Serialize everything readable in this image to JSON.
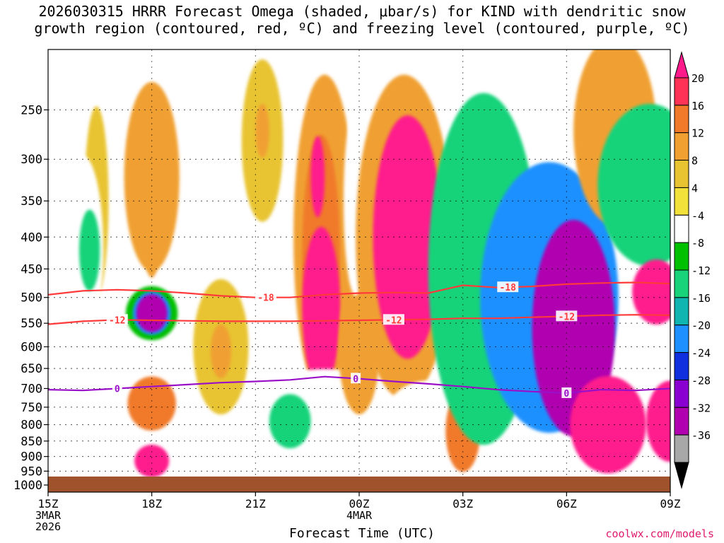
{
  "chart_data": {
    "type": "heatmap",
    "title": "2026030315 HRRR Forecast Omega (shaded, μbar/s) for KIND with dendritic snow\ngrowth region (contoured, red, ºC) and freezing level (contoured, purple, ºC)",
    "xlabel": "Forecast Time (UTC)",
    "ylabel": "",
    "y_scale": "log",
    "y_reversed": true,
    "ylim": [
      1000,
      200
    ],
    "y_ticks": [
      250,
      300,
      350,
      400,
      450,
      500,
      550,
      600,
      650,
      700,
      750,
      800,
      850,
      900,
      950,
      1000
    ],
    "x_ticks": [
      {
        "hour": 0,
        "label": "15Z",
        "sub": [
          "3MAR",
          "2026"
        ]
      },
      {
        "hour": 3,
        "label": "18Z",
        "sub": []
      },
      {
        "hour": 6,
        "label": "21Z",
        "sub": []
      },
      {
        "hour": 9,
        "label": "00Z",
        "sub": [
          "4MAR"
        ]
      },
      {
        "hour": 12,
        "label": "03Z",
        "sub": []
      },
      {
        "hour": 15,
        "label": "06Z",
        "sub": []
      },
      {
        "hour": 18,
        "label": "09Z",
        "sub": []
      }
    ],
    "xlim": [
      0,
      18
    ],
    "ground_color": "#a0522d",
    "colorbar": {
      "labels": [
        "20",
        "16",
        "12",
        "8",
        "4",
        "-4",
        "-8",
        "-12",
        "-16",
        "-20",
        "-24",
        "-28",
        "-32",
        "-36"
      ],
      "colors": [
        "#ff1a8c",
        "#ff3355",
        "#f07a2a",
        "#f0a030",
        "#e8c432",
        "#f2e13a",
        "#ffffff",
        "#00c000",
        "#18d37a",
        "#10b4b0",
        "#1e90ff",
        "#1030e0",
        "#8a00d0",
        "#b000b0",
        "#a8a8a8",
        "#000000"
      ]
    },
    "shaded_regions": [
      {
        "omega": 6,
        "hour": 1.4,
        "p": 350,
        "dh": 0.35,
        "dp": 0.35
      },
      {
        "omega": -8,
        "hour": 1.0,
        "p": 420,
        "dh": 0.6,
        "dp": 0.35
      },
      {
        "omega": -14,
        "hour": 1.2,
        "p": 420,
        "dh": 0.3,
        "dp": 0.15
      },
      {
        "omega": 8,
        "hour": 3.0,
        "p": 320,
        "dh": 0.8,
        "dp": 0.35
      },
      {
        "omega": 10,
        "hour": 3.0,
        "p": 400,
        "dh": 0.25,
        "dp": 0.15
      },
      {
        "omega": -12,
        "hour": 3.0,
        "p": 530,
        "dh": 0.75,
        "dp": 0.1
      },
      {
        "omega": -24,
        "hour": 3.0,
        "p": 530,
        "dh": 0.55,
        "dp": 0.08
      },
      {
        "omega": -36,
        "hour": 3.0,
        "p": 530,
        "dh": 0.45,
        "dp": 0.07
      },
      {
        "omega": 6,
        "hour": 6.2,
        "p": 280,
        "dh": 0.6,
        "dp": 0.3
      },
      {
        "omega": 10,
        "hour": 6.2,
        "p": 270,
        "dh": 0.2,
        "dp": 0.1
      },
      {
        "omega": -8,
        "hour": 4.9,
        "p": 270,
        "dh": 0.25,
        "dp": 0.25
      },
      {
        "omega": 6,
        "hour": 5.0,
        "p": 600,
        "dh": 0.8,
        "dp": 0.25
      },
      {
        "omega": 10,
        "hour": 5.0,
        "p": 610,
        "dh": 0.3,
        "dp": 0.1
      },
      {
        "omega": 8,
        "hour": 8.0,
        "p": 400,
        "dh": 0.9,
        "dp": 0.6
      },
      {
        "omega": 14,
        "hour": 7.9,
        "p": 430,
        "dh": 0.55,
        "dp": 0.45
      },
      {
        "omega": 20,
        "hour": 7.9,
        "p": 520,
        "dh": 0.55,
        "dp": 0.3
      },
      {
        "omega": 20,
        "hour": 7.8,
        "p": 320,
        "dh": 0.2,
        "dp": 0.15
      },
      {
        "omega": -8,
        "hour": 8.0,
        "p": 780,
        "dh": 2.5,
        "dp": 0.18
      },
      {
        "omega": -14,
        "hour": 7.0,
        "p": 790,
        "dh": 0.6,
        "dp": 0.1
      },
      {
        "omega": 8,
        "hour": 9.0,
        "p": 600,
        "dh": 0.6,
        "dp": 0.25
      },
      {
        "omega": -8,
        "hour": 8.9,
        "p": 350,
        "dh": 0.35,
        "dp": 0.35
      },
      {
        "omega": 10,
        "hour": 10.3,
        "p": 400,
        "dh": 1.4,
        "dp": 0.6
      },
      {
        "omega": 20,
        "hour": 10.4,
        "p": 400,
        "dh": 1.0,
        "dp": 0.45
      },
      {
        "omega": -8,
        "hour": 11.0,
        "p": 790,
        "dh": 1.3,
        "dp": 0.15
      },
      {
        "omega": 14,
        "hour": 12.0,
        "p": 820,
        "dh": 0.5,
        "dp": 0.15
      },
      {
        "omega": -14,
        "hour": 12.6,
        "p": 450,
        "dh": 1.6,
        "dp": 0.65
      },
      {
        "omega": -24,
        "hour": 14.5,
        "p": 500,
        "dh": 2.0,
        "dp": 0.5
      },
      {
        "omega": -36,
        "hour": 15.2,
        "p": 560,
        "dh": 1.2,
        "dp": 0.4
      },
      {
        "omega": 8,
        "hour": 16.4,
        "p": 270,
        "dh": 1.2,
        "dp": 0.35
      },
      {
        "omega": -14,
        "hour": 17.4,
        "p": 330,
        "dh": 1.5,
        "dp": 0.3
      },
      {
        "omega": 20,
        "hour": 17.6,
        "p": 490,
        "dh": 0.7,
        "dp": 0.12
      },
      {
        "omega": 20,
        "hour": 16.2,
        "p": 800,
        "dh": 1.1,
        "dp": 0.18
      },
      {
        "omega": 20,
        "hour": 18.0,
        "p": 790,
        "dh": 0.7,
        "dp": 0.15
      },
      {
        "omega": 14,
        "hour": 3.0,
        "p": 740,
        "dh": 0.7,
        "dp": 0.1
      },
      {
        "omega": 20,
        "hour": 3.0,
        "p": 915,
        "dh": 0.5,
        "dp": 0.06
      }
    ],
    "contours": [
      {
        "label": "-18",
        "color": "#ff3a3a",
        "kind": "dendritic",
        "points": [
          [
            0,
            495
          ],
          [
            1,
            488
          ],
          [
            2,
            486
          ],
          [
            3,
            488
          ],
          [
            4,
            492
          ],
          [
            5,
            497
          ],
          [
            6,
            500
          ],
          [
            7,
            500
          ],
          [
            8,
            495
          ],
          [
            9,
            492
          ],
          [
            10,
            491
          ],
          [
            11,
            492
          ],
          [
            12,
            478
          ],
          [
            13,
            482
          ],
          [
            14,
            480
          ],
          [
            15,
            476
          ],
          [
            16,
            474
          ],
          [
            17,
            473
          ],
          [
            18,
            475
          ]
        ],
        "labels_at": [
          6.3,
          13.3
        ]
      },
      {
        "label": "-12",
        "color": "#ff3a3a",
        "kind": "dendritic",
        "points": [
          [
            0,
            552
          ],
          [
            1,
            546
          ],
          [
            2,
            543
          ],
          [
            3,
            544
          ],
          [
            4,
            545
          ],
          [
            5,
            546
          ],
          [
            6,
            546
          ],
          [
            7,
            546
          ],
          [
            8,
            545
          ],
          [
            9,
            544
          ],
          [
            10,
            543
          ],
          [
            11,
            542
          ],
          [
            12,
            540
          ],
          [
            13,
            540
          ],
          [
            14,
            538
          ],
          [
            15,
            536
          ],
          [
            16,
            534
          ],
          [
            17,
            533
          ],
          [
            18,
            534
          ]
        ],
        "labels_at": [
          2.0,
          10.0,
          15.0
        ]
      },
      {
        "label": "0",
        "color": "#9a10c8",
        "kind": "freezing",
        "points": [
          [
            0,
            703
          ],
          [
            1,
            705
          ],
          [
            2,
            700
          ],
          [
            3,
            695
          ],
          [
            4,
            690
          ],
          [
            5,
            685
          ],
          [
            6,
            682
          ],
          [
            7,
            678
          ],
          [
            8,
            670
          ],
          [
            9,
            675
          ],
          [
            10,
            682
          ],
          [
            11,
            688
          ],
          [
            12,
            695
          ],
          [
            13,
            703
          ],
          [
            14,
            708
          ],
          [
            15,
            712
          ],
          [
            16,
            703
          ],
          [
            17,
            705
          ],
          [
            18,
            700
          ]
        ],
        "labels_at": [
          2.0,
          8.9,
          15.0
        ]
      }
    ]
  },
  "credit": "coolwx.com/models"
}
